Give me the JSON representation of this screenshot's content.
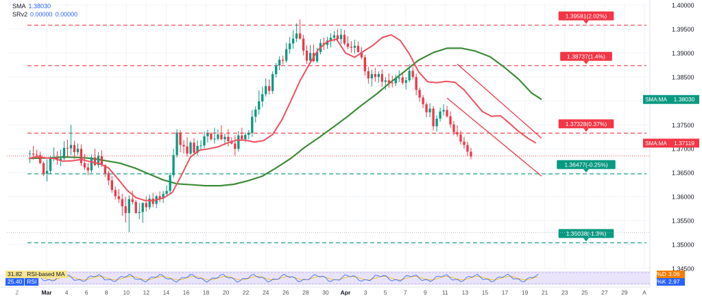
{
  "indicators": {
    "sma_label": "SMA",
    "sma_value": "1.38030",
    "srv2_label": "SRv2",
    "srv2_value1": "0.00000",
    "srv2_value2": "0.00000"
  },
  "rsi": {
    "row1_value": "31.82",
    "row1_label": "RSI-based MA",
    "row2_value": "25.40",
    "row2_label": "RSI",
    "row2_overlay": "Stoch"
  },
  "stoch": {
    "d_label": "%D",
    "d_value": "3.06",
    "k_label": "%K",
    "k_value": "2.97"
  },
  "chart_data": {
    "type": "candlestick",
    "ylim": [
      1.345,
      1.4005
    ],
    "yticks": [
      "1.40000",
      "1.39500",
      "1.39000",
      "1.38500",
      "1.38000",
      "1.37500",
      "1.37000",
      "1.36500",
      "1.36000",
      "1.35500",
      "1.35000",
      "1.34500"
    ],
    "xticks": [
      "Mar",
      "4",
      "6",
      "8",
      "10",
      "12",
      "14",
      "16",
      "18",
      "20",
      "22",
      "24",
      "26",
      "28",
      "30",
      "Apr",
      "3",
      "5",
      "7",
      "9",
      "11",
      "13",
      "15",
      "17",
      "19",
      "21",
      "23",
      "25",
      "27",
      "29",
      "A"
    ],
    "levels": [
      {
        "value": 1.39581,
        "label": "1.39581(2.02%)",
        "color": "#f23645",
        "style": "dashed"
      },
      {
        "value": 1.38737,
        "label": "1.38737(1.4%)",
        "color": "#f23645",
        "style": "dashed"
      },
      {
        "value": 1.37328,
        "label": "1.37328(0.37%)",
        "color": "#f23645",
        "style": "dashed"
      },
      {
        "value": 1.36477,
        "label": "1.36477(-0.25%)",
        "color": "#089981",
        "style": "dashed"
      },
      {
        "value": 1.35038,
        "label": "1.35038(-1.3%)",
        "color": "#089981",
        "style": "dashed"
      }
    ],
    "price_tags": [
      {
        "label": "SMA:MA",
        "value": "1.38030",
        "y": 1.3803,
        "color": "#089981"
      },
      {
        "label": "SMA:MA",
        "value": "1.37119",
        "y": 1.37119,
        "color": "#f23645"
      }
    ],
    "current_price": 1.3685,
    "sma_slow": [
      [
        0,
        1.368
      ],
      [
        18,
        1.3681
      ],
      [
        30,
        1.3683
      ],
      [
        43,
        1.3682
      ],
      [
        55,
        1.368
      ],
      [
        68,
        1.3675
      ],
      [
        80,
        1.367
      ],
      [
        93,
        1.366
      ],
      [
        105,
        1.3648
      ],
      [
        118,
        1.3635
      ],
      [
        130,
        1.3627
      ],
      [
        143,
        1.3625
      ],
      [
        155,
        1.3623
      ],
      [
        168,
        1.3623
      ],
      [
        180,
        1.3626
      ],
      [
        192,
        1.3633
      ],
      [
        205,
        1.3643
      ],
      [
        217,
        1.366
      ],
      [
        230,
        1.368
      ],
      [
        242,
        1.3703
      ],
      [
        255,
        1.3724
      ],
      [
        267,
        1.3745
      ],
      [
        280,
        1.3768
      ],
      [
        292,
        1.3791
      ],
      [
        305,
        1.3814
      ],
      [
        317,
        1.3838
      ],
      [
        330,
        1.3862
      ],
      [
        342,
        1.3885
      ],
      [
        355,
        1.3901
      ],
      [
        367,
        1.391
      ],
      [
        380,
        1.391
      ],
      [
        392,
        1.3904
      ],
      [
        405,
        1.3892
      ],
      [
        417,
        1.3871
      ],
      [
        430,
        1.3845
      ],
      [
        441,
        1.3817
      ],
      [
        450,
        1.3803
      ]
    ],
    "sma_fast": [
      [
        0,
        1.368
      ],
      [
        8,
        1.3684
      ],
      [
        15,
        1.3681
      ],
      [
        22,
        1.368
      ],
      [
        30,
        1.3674
      ],
      [
        38,
        1.3675
      ],
      [
        46,
        1.3678
      ],
      [
        54,
        1.3673
      ],
      [
        62,
        1.3669
      ],
      [
        70,
        1.366
      ],
      [
        78,
        1.3638
      ],
      [
        86,
        1.3614
      ],
      [
        94,
        1.3598
      ],
      [
        102,
        1.3592
      ],
      [
        110,
        1.3592
      ],
      [
        118,
        1.3597
      ],
      [
        126,
        1.3609
      ],
      [
        134,
        1.3645
      ],
      [
        142,
        1.3683
      ],
      [
        150,
        1.3697
      ],
      [
        158,
        1.37
      ],
      [
        166,
        1.3704
      ],
      [
        174,
        1.3712
      ],
      [
        182,
        1.3718
      ],
      [
        190,
        1.3718
      ],
      [
        198,
        1.3714
      ],
      [
        206,
        1.3717
      ],
      [
        214,
        1.373
      ],
      [
        222,
        1.376
      ],
      [
        230,
        1.38
      ],
      [
        238,
        1.3842
      ],
      [
        246,
        1.3876
      ],
      [
        254,
        1.3907
      ],
      [
        262,
        1.3924
      ],
      [
        270,
        1.3929
      ],
      [
        278,
        1.39
      ],
      [
        286,
        1.3891
      ],
      [
        294,
        1.3904
      ],
      [
        302,
        1.3916
      ],
      [
        310,
        1.3932
      ],
      [
        318,
        1.3938
      ],
      [
        326,
        1.3926
      ],
      [
        334,
        1.3898
      ],
      [
        342,
        1.3861
      ],
      [
        350,
        1.384
      ],
      [
        358,
        1.3838
      ],
      [
        366,
        1.3841
      ],
      [
        374,
        1.3839
      ],
      [
        382,
        1.3823
      ],
      [
        390,
        1.38
      ],
      [
        398,
        1.3778
      ],
      [
        406,
        1.3768
      ],
      [
        414,
        1.3769
      ],
      [
        422,
        1.3753
      ],
      [
        430,
        1.3736
      ],
      [
        438,
        1.3722
      ],
      [
        445,
        1.3712
      ]
    ],
    "channel": {
      "upper": [
        [
          376,
          1.3877
        ],
        [
          450,
          1.3722
        ]
      ],
      "lower": [
        [
          367,
          1.3806
        ],
        [
          450,
          1.3643
        ]
      ]
    },
    "candles_x_range": [
      0,
      450
    ],
    "candles": [
      [
        1,
        1.369,
        1.3697,
        1.367,
        1.369
      ],
      [
        4,
        1.369,
        1.3706,
        1.3677,
        1.3688
      ],
      [
        7,
        1.3688,
        1.3698,
        1.3679,
        1.3687
      ],
      [
        10,
        1.3687,
        1.3694,
        1.3668,
        1.367
      ],
      [
        13,
        1.367,
        1.3674,
        1.3643,
        1.3648
      ],
      [
        16,
        1.3648,
        1.3678,
        1.3632,
        1.3654
      ],
      [
        19,
        1.3654,
        1.3686,
        1.3647,
        1.3681
      ],
      [
        22,
        1.3681,
        1.3703,
        1.3674,
        1.3683
      ],
      [
        25,
        1.3683,
        1.3695,
        1.3667,
        1.3676
      ],
      [
        28,
        1.3676,
        1.3698,
        1.3664,
        1.368
      ],
      [
        31,
        1.368,
        1.3716,
        1.3676,
        1.3702
      ],
      [
        34,
        1.3702,
        1.3719,
        1.3681,
        1.3701
      ],
      [
        37,
        1.3701,
        1.375,
        1.3687,
        1.3708
      ],
      [
        40,
        1.3708,
        1.3717,
        1.3679,
        1.3693
      ],
      [
        43,
        1.3693,
        1.3711,
        1.3687,
        1.37
      ],
      [
        46,
        1.37,
        1.3709,
        1.3664,
        1.367
      ],
      [
        49,
        1.367,
        1.3689,
        1.3656,
        1.3661
      ],
      [
        52,
        1.3661,
        1.367,
        1.3645,
        1.3655
      ],
      [
        55,
        1.3655,
        1.3688,
        1.365,
        1.3682
      ],
      [
        58,
        1.3682,
        1.37,
        1.3664,
        1.3666
      ],
      [
        61,
        1.3666,
        1.3693,
        1.366,
        1.3685
      ],
      [
        64,
        1.3685,
        1.3697,
        1.3662,
        1.3666
      ],
      [
        67,
        1.3666,
        1.3668,
        1.3641,
        1.3649
      ],
      [
        70,
        1.3649,
        1.3654,
        1.3624,
        1.3634
      ],
      [
        73,
        1.3634,
        1.3643,
        1.3608,
        1.3614
      ],
      [
        76,
        1.3614,
        1.3621,
        1.3594,
        1.3601
      ],
      [
        79,
        1.3601,
        1.3616,
        1.3587,
        1.3595
      ],
      [
        82,
        1.3595,
        1.3606,
        1.356,
        1.358
      ],
      [
        85,
        1.358,
        1.36,
        1.3546,
        1.3566
      ],
      [
        88,
        1.3566,
        1.3603,
        1.3526,
        1.3595
      ],
      [
        91,
        1.3595,
        1.3612,
        1.3584,
        1.3589
      ],
      [
        94,
        1.3589,
        1.3593,
        1.3564,
        1.3566
      ],
      [
        97,
        1.3566,
        1.3587,
        1.3553,
        1.3568
      ],
      [
        100,
        1.3568,
        1.3588,
        1.3545,
        1.3587
      ],
      [
        103,
        1.3587,
        1.3601,
        1.3569,
        1.3578
      ],
      [
        106,
        1.3578,
        1.3604,
        1.3573,
        1.3596
      ],
      [
        109,
        1.3596,
        1.3608,
        1.3578,
        1.3585
      ],
      [
        112,
        1.3585,
        1.3604,
        1.3576,
        1.3601
      ],
      [
        115,
        1.3601,
        1.3611,
        1.3588,
        1.3596
      ],
      [
        118,
        1.3596,
        1.3612,
        1.3587,
        1.3606
      ],
      [
        121,
        1.3606,
        1.3624,
        1.3601,
        1.3612
      ],
      [
        124,
        1.3612,
        1.365,
        1.3606,
        1.3645
      ],
      [
        127,
        1.3645,
        1.37,
        1.364,
        1.3687
      ],
      [
        130,
        1.3687,
        1.3741,
        1.3682,
        1.3734
      ],
      [
        133,
        1.3734,
        1.3739,
        1.3693,
        1.3708
      ],
      [
        136,
        1.3708,
        1.3718,
        1.369,
        1.3705
      ],
      [
        139,
        1.3705,
        1.3724,
        1.3684,
        1.369
      ],
      [
        142,
        1.369,
        1.3717,
        1.3687,
        1.3713
      ],
      [
        145,
        1.3713,
        1.3722,
        1.3687,
        1.3692
      ],
      [
        148,
        1.3692,
        1.3718,
        1.3686,
        1.3706
      ],
      [
        151,
        1.3706,
        1.3718,
        1.3698,
        1.3707
      ],
      [
        154,
        1.3707,
        1.3736,
        1.3701,
        1.3726
      ],
      [
        157,
        1.3726,
        1.374,
        1.3713,
        1.3732
      ],
      [
        160,
        1.3732,
        1.3735,
        1.3717,
        1.372
      ],
      [
        163,
        1.372,
        1.3744,
        1.3711,
        1.3721
      ],
      [
        166,
        1.3721,
        1.374,
        1.3717,
        1.373
      ],
      [
        169,
        1.373,
        1.3749,
        1.3718,
        1.372
      ],
      [
        172,
        1.372,
        1.3732,
        1.3708,
        1.3725
      ],
      [
        175,
        1.3725,
        1.3741,
        1.3705,
        1.3716
      ],
      [
        178,
        1.3716,
        1.3724,
        1.3709,
        1.3711
      ],
      [
        181,
        1.3711,
        1.3728,
        1.3686,
        1.37
      ],
      [
        184,
        1.37,
        1.3737,
        1.3694,
        1.3728
      ],
      [
        187,
        1.3728,
        1.3744,
        1.3718,
        1.372
      ],
      [
        190,
        1.372,
        1.3734,
        1.3714,
        1.3729
      ],
      [
        193,
        1.3729,
        1.3739,
        1.372,
        1.3733
      ],
      [
        196,
        1.3733,
        1.3781,
        1.3725,
        1.3767
      ],
      [
        199,
        1.3767,
        1.3789,
        1.3755,
        1.3782
      ],
      [
        202,
        1.3782,
        1.3822,
        1.3772,
        1.3799
      ],
      [
        205,
        1.3799,
        1.383,
        1.3787,
        1.3814
      ],
      [
        208,
        1.3814,
        1.3847,
        1.3809,
        1.3831
      ],
      [
        211,
        1.3831,
        1.3845,
        1.3813,
        1.3821
      ],
      [
        214,
        1.3821,
        1.3862,
        1.3815,
        1.3856
      ],
      [
        217,
        1.3856,
        1.3879,
        1.3849,
        1.3874
      ],
      [
        220,
        1.3874,
        1.3893,
        1.3864,
        1.3886
      ],
      [
        223,
        1.3886,
        1.3895,
        1.3876,
        1.3884
      ],
      [
        226,
        1.3884,
        1.3921,
        1.388,
        1.3908
      ],
      [
        229,
        1.3908,
        1.3933,
        1.3899,
        1.392
      ],
      [
        232,
        1.392,
        1.3947,
        1.3909,
        1.393
      ],
      [
        235,
        1.393,
        1.3962,
        1.3923,
        1.3941
      ],
      [
        238,
        1.3941,
        1.397,
        1.3928,
        1.393
      ],
      [
        241,
        1.393,
        1.3938,
        1.3895,
        1.3905
      ],
      [
        244,
        1.3905,
        1.3916,
        1.3878,
        1.3884
      ],
      [
        247,
        1.3884,
        1.3917,
        1.3879,
        1.39
      ],
      [
        250,
        1.39,
        1.3918,
        1.3881,
        1.3883
      ],
      [
        253,
        1.3883,
        1.3911,
        1.3879,
        1.3902
      ],
      [
        256,
        1.3902,
        1.3929,
        1.3897,
        1.3921
      ],
      [
        259,
        1.3921,
        1.3932,
        1.3906,
        1.3917
      ],
      [
        262,
        1.3917,
        1.3934,
        1.3909,
        1.3926
      ],
      [
        265,
        1.3926,
        1.3941,
        1.3912,
        1.3932
      ],
      [
        268,
        1.3932,
        1.3946,
        1.3924,
        1.3937
      ],
      [
        271,
        1.3937,
        1.395,
        1.3927,
        1.3929
      ],
      [
        274,
        1.3929,
        1.3951,
        1.3919,
        1.3938
      ],
      [
        277,
        1.3938,
        1.3948,
        1.3916,
        1.392
      ],
      [
        280,
        1.392,
        1.3935,
        1.3908,
        1.3913
      ],
      [
        283,
        1.3913,
        1.3925,
        1.3901,
        1.3911
      ],
      [
        286,
        1.3911,
        1.3928,
        1.3899,
        1.3915
      ],
      [
        289,
        1.3915,
        1.3924,
        1.3901,
        1.3902
      ],
      [
        292,
        1.3902,
        1.3912,
        1.3887,
        1.3891
      ],
      [
        295,
        1.3891,
        1.3896,
        1.3853,
        1.3862
      ],
      [
        298,
        1.3862,
        1.3871,
        1.3836,
        1.3847
      ],
      [
        301,
        1.3847,
        1.3865,
        1.383,
        1.3856
      ],
      [
        304,
        1.3856,
        1.3869,
        1.384,
        1.385
      ],
      [
        307,
        1.385,
        1.3862,
        1.3838,
        1.3856
      ],
      [
        310,
        1.3856,
        1.3866,
        1.3829,
        1.384
      ],
      [
        313,
        1.384,
        1.385,
        1.3823,
        1.3843
      ],
      [
        316,
        1.3843,
        1.3858,
        1.3827,
        1.3838
      ],
      [
        319,
        1.3838,
        1.3853,
        1.3828,
        1.3837
      ],
      [
        322,
        1.3837,
        1.3855,
        1.3831,
        1.3847
      ],
      [
        325,
        1.3847,
        1.3864,
        1.3839,
        1.3849
      ],
      [
        328,
        1.3849,
        1.3858,
        1.3834,
        1.3838
      ],
      [
        331,
        1.3838,
        1.385,
        1.3824,
        1.3843
      ],
      [
        334,
        1.3843,
        1.3877,
        1.3839,
        1.3863
      ],
      [
        337,
        1.3863,
        1.3871,
        1.3845,
        1.385
      ],
      [
        340,
        1.385,
        1.3857,
        1.3812,
        1.3823
      ],
      [
        343,
        1.3823,
        1.3828,
        1.3798,
        1.3807
      ],
      [
        346,
        1.3807,
        1.3812,
        1.3785,
        1.3793
      ],
      [
        349,
        1.3793,
        1.3797,
        1.3766,
        1.3776
      ],
      [
        352,
        1.3776,
        1.3795,
        1.3766,
        1.3784
      ],
      [
        355,
        1.3784,
        1.3789,
        1.3738,
        1.3747
      ],
      [
        358,
        1.3747,
        1.377,
        1.3736,
        1.3763
      ],
      [
        361,
        1.3763,
        1.3786,
        1.3757,
        1.3778
      ],
      [
        364,
        1.3778,
        1.3793,
        1.377,
        1.3781
      ],
      [
        367,
        1.3781,
        1.379,
        1.3765,
        1.3768
      ],
      [
        370,
        1.3768,
        1.3778,
        1.3744,
        1.3751
      ],
      [
        373,
        1.3751,
        1.3758,
        1.3728,
        1.3735
      ],
      [
        376,
        1.3735,
        1.3749,
        1.3725,
        1.373
      ],
      [
        379,
        1.373,
        1.3738,
        1.3709,
        1.3715
      ],
      [
        382,
        1.3715,
        1.3725,
        1.37,
        1.3708
      ],
      [
        385,
        1.3708,
        1.3715,
        1.3685,
        1.3694
      ],
      [
        388,
        1.3694,
        1.3702,
        1.3678,
        1.3684
      ]
    ]
  }
}
